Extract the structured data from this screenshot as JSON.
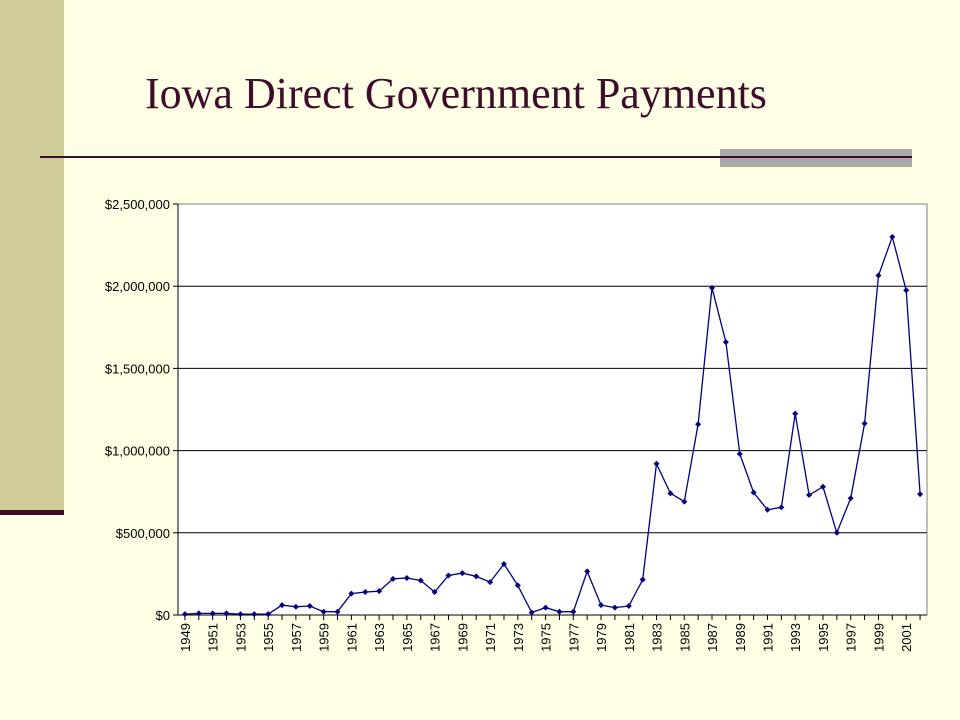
{
  "slide": {
    "title": "Iowa Direct Government Payments"
  },
  "chart_data": {
    "type": "line",
    "title": "",
    "xlabel": "",
    "ylabel": "",
    "ylim": [
      0,
      2500000
    ],
    "y_ticks": [
      "$0",
      "$500,000",
      "$1,000,000",
      "$1,500,000",
      "$2,000,000",
      "$2,500,000"
    ],
    "x_tick_labels": [
      "1949",
      "1951",
      "1953",
      "1955",
      "1957",
      "1959",
      "1961",
      "1963",
      "1965",
      "1967",
      "1969",
      "1971",
      "1973",
      "1975",
      "1977",
      "1979",
      "1981",
      "1983",
      "1985",
      "1987",
      "1989",
      "1991",
      "1993",
      "1995",
      "1997",
      "1999",
      "2001"
    ],
    "grid": "horizontal",
    "series": [
      {
        "color": "#000080",
        "x": [
          1949,
          1950,
          1951,
          1952,
          1953,
          1954,
          1955,
          1956,
          1957,
          1958,
          1959,
          1960,
          1961,
          1962,
          1963,
          1964,
          1965,
          1966,
          1967,
          1968,
          1969,
          1970,
          1971,
          1972,
          1973,
          1974,
          1975,
          1976,
          1977,
          1978,
          1979,
          1980,
          1981,
          1982,
          1983,
          1984,
          1985,
          1986,
          1987,
          1988,
          1989,
          1990,
          1991,
          1992,
          1993,
          1994,
          1995,
          1996,
          1997,
          1998,
          1999,
          2000,
          2001,
          2002
        ],
        "values": [
          5000,
          10000,
          10000,
          10000,
          5000,
          5000,
          5000,
          60000,
          50000,
          55000,
          20000,
          20000,
          130000,
          140000,
          145000,
          220000,
          225000,
          210000,
          140000,
          240000,
          255000,
          235000,
          200000,
          310000,
          180000,
          15000,
          45000,
          20000,
          20000,
          265000,
          60000,
          45000,
          55000,
          215000,
          920000,
          740000,
          690000,
          1160000,
          1990000,
          1660000,
          980000,
          745000,
          640000,
          655000,
          1225000,
          730000,
          780000,
          500000,
          710000,
          1165000,
          2065000,
          2300000,
          1975000,
          735000
        ]
      }
    ]
  }
}
